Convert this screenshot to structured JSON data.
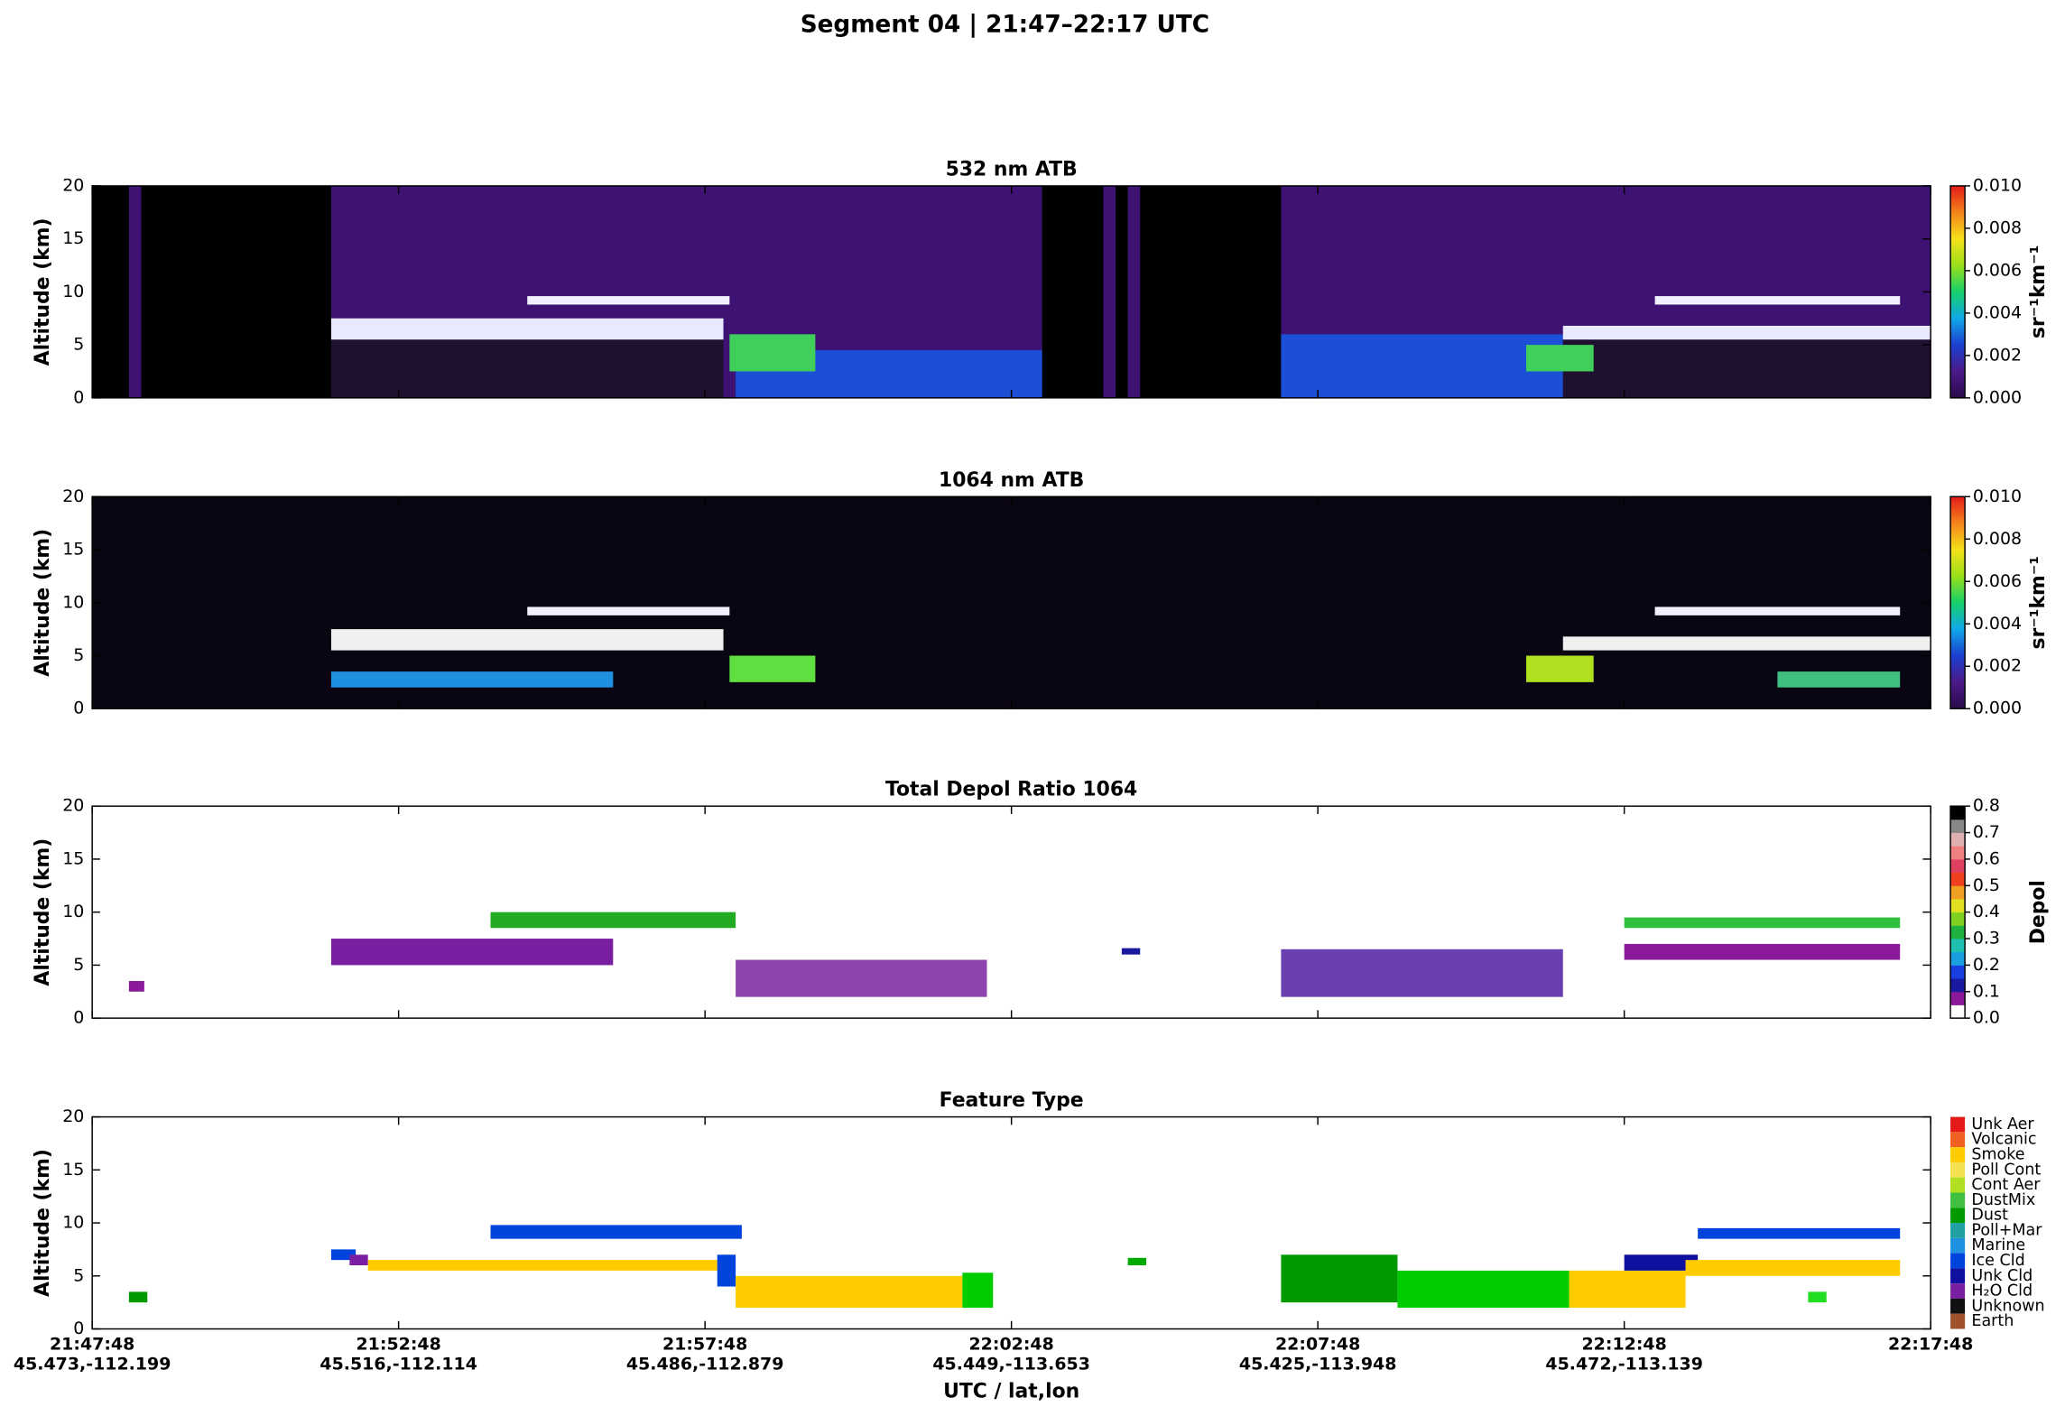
{
  "title": "Segment 04  |  21:47–22:17 UTC",
  "xlabel": "UTC / lat,lon",
  "chart_data": [
    {
      "type": "curtain",
      "title": "532 nm ATB",
      "ylabel": "Altitude (km)",
      "xlim": [
        0,
        30
      ],
      "ylim": [
        0,
        20
      ],
      "yticks": [
        0,
        5,
        10,
        15,
        20
      ],
      "colorbar": {
        "label": "sr⁻¹km⁻¹",
        "kind": "gradient",
        "lim": [
          0,
          0.01
        ],
        "ticks": [
          {
            "value": 0,
            "label": "0.000"
          },
          {
            "value": 0.002,
            "label": "0.002"
          },
          {
            "value": 0.004,
            "label": "0.004"
          },
          {
            "value": 0.006,
            "label": "0.006"
          },
          {
            "value": 0.008,
            "label": "0.008"
          },
          {
            "value": 0.01,
            "label": "0.010"
          }
        ],
        "colors": [
          "#2a0a4a",
          "#4b1a8a",
          "#1b3fd0",
          "#11a8e8",
          "#16d06a",
          "#9ae01a",
          "#f5e11a",
          "#f5841a",
          "#e41a1a"
        ]
      },
      "features": [
        {
          "x": [
            0,
            30
          ],
          "y": [
            0,
            20
          ],
          "color": "#3d1273"
        },
        {
          "x": [
            0,
            0.6
          ],
          "y": [
            0,
            20
          ],
          "color": "#000000"
        },
        {
          "x": [
            0.8,
            3.9
          ],
          "y": [
            0,
            20
          ],
          "color": "#000000"
        },
        {
          "x": [
            15.5,
            16.5
          ],
          "y": [
            0,
            20
          ],
          "color": "#000000"
        },
        {
          "x": [
            16.7,
            16.9
          ],
          "y": [
            0,
            20
          ],
          "color": "#000000"
        },
        {
          "x": [
            17.1,
            19.4
          ],
          "y": [
            0,
            20
          ],
          "color": "#000000"
        },
        {
          "x": [
            10.5,
            15.5
          ],
          "y": [
            0,
            4.5
          ],
          "color": "#1a4fd6"
        },
        {
          "x": [
            19.4,
            24
          ],
          "y": [
            0,
            6
          ],
          "color": "#1a4fd6"
        },
        {
          "x": [
            3.9,
            10.3
          ],
          "y": [
            0,
            5.5
          ],
          "color": "#201030"
        },
        {
          "x": [
            24,
            30
          ],
          "y": [
            0,
            5.5
          ],
          "color": "#201030"
        },
        {
          "x": [
            3.9,
            10.3
          ],
          "y": [
            5.5,
            7.5
          ],
          "color": "#e8e8ff"
        },
        {
          "x": [
            7.1,
            10.4
          ],
          "y": [
            8.8,
            9.6
          ],
          "color": "#f0f0ff"
        },
        {
          "x": [
            10.4,
            11.8
          ],
          "y": [
            2.5,
            6
          ],
          "color": "#3fcf5a"
        },
        {
          "x": [
            24,
            30
          ],
          "y": [
            5.5,
            6.8
          ],
          "color": "#e8e8ff"
        },
        {
          "x": [
            25.5,
            29.5
          ],
          "y": [
            8.8,
            9.6
          ],
          "color": "#f0f0ff"
        },
        {
          "x": [
            23.4,
            24.5
          ],
          "y": [
            2.5,
            5
          ],
          "color": "#3fcf5a"
        }
      ]
    },
    {
      "type": "curtain",
      "title": "1064 nm ATB",
      "ylabel": "Altitude (km)",
      "xlim": [
        0,
        30
      ],
      "ylim": [
        0,
        20
      ],
      "yticks": [
        0,
        5,
        10,
        15,
        20
      ],
      "colorbar": {
        "label": "sr⁻¹km⁻¹",
        "kind": "gradient",
        "lim": [
          0,
          0.01
        ],
        "ticks": [
          {
            "value": 0,
            "label": "0.000"
          },
          {
            "value": 0.002,
            "label": "0.002"
          },
          {
            "value": 0.004,
            "label": "0.004"
          },
          {
            "value": 0.006,
            "label": "0.006"
          },
          {
            "value": 0.008,
            "label": "0.008"
          },
          {
            "value": 0.01,
            "label": "0.010"
          }
        ],
        "colors": [
          "#2a0a4a",
          "#4b1a8a",
          "#1b3fd0",
          "#11a8e8",
          "#16d06a",
          "#9ae01a",
          "#f5e11a",
          "#f5841a",
          "#e41a1a"
        ]
      },
      "features": [
        {
          "x": [
            0,
            30
          ],
          "y": [
            0,
            20
          ],
          "color": "#0a0512"
        },
        {
          "x": [
            3.9,
            8.5
          ],
          "y": [
            2,
            3.5
          ],
          "color": "#1f8fe0"
        },
        {
          "x": [
            3.9,
            10.3
          ],
          "y": [
            5.5,
            7.5
          ],
          "color": "#f0f0f0"
        },
        {
          "x": [
            7.1,
            10.4
          ],
          "y": [
            8.8,
            9.6
          ],
          "color": "#f0f0ff"
        },
        {
          "x": [
            10.4,
            11.8
          ],
          "y": [
            2.5,
            5
          ],
          "color": "#60e040"
        },
        {
          "x": [
            23.4,
            24.5
          ],
          "y": [
            2.5,
            5
          ],
          "color": "#b0e020"
        },
        {
          "x": [
            24,
            30
          ],
          "y": [
            5.5,
            6.8
          ],
          "color": "#f0f0f0"
        },
        {
          "x": [
            25.5,
            29.5
          ],
          "y": [
            8.8,
            9.6
          ],
          "color": "#f0f0ff"
        },
        {
          "x": [
            27.5,
            29.5
          ],
          "y": [
            2,
            3.5
          ],
          "color": "#40c080"
        }
      ]
    },
    {
      "type": "curtain",
      "title": "Total Depol Ratio 1064",
      "ylabel": "Altitude (km)",
      "xlim": [
        0,
        30
      ],
      "ylim": [
        0,
        20
      ],
      "yticks": [
        0,
        5,
        10,
        15,
        20
      ],
      "colorbar": {
        "label": "Depol",
        "kind": "steps",
        "lim": [
          0,
          0.8
        ],
        "ticks": [
          {
            "value": 0,
            "label": "0.0"
          },
          {
            "value": 0.1,
            "label": "0.1"
          },
          {
            "value": 0.2,
            "label": "0.2"
          },
          {
            "value": 0.3,
            "label": "0.3"
          },
          {
            "value": 0.4,
            "label": "0.4"
          },
          {
            "value": 0.5,
            "label": "0.5"
          },
          {
            "value": 0.6,
            "label": "0.6"
          },
          {
            "value": 0.7,
            "label": "0.7"
          },
          {
            "value": 0.8,
            "label": "0.8"
          }
        ],
        "colors": [
          "#ffffff",
          "#8b1a9a",
          "#1a1aa0",
          "#1a3fe0",
          "#1a9fe0",
          "#20c0b0",
          "#20b040",
          "#80d020",
          "#e0e020",
          "#f0a020",
          "#f04020",
          "#e04060",
          "#f08080",
          "#e0b0b0",
          "#888888",
          "#000000"
        ]
      },
      "features": [
        {
          "x": [
            0.6,
            0.85
          ],
          "y": [
            2.5,
            3.5
          ],
          "color": "#8b1a9a"
        },
        {
          "x": [
            3.9,
            8.5
          ],
          "y": [
            5,
            7.5
          ],
          "color": "#7b1fa2"
        },
        {
          "x": [
            6.5,
            10.5
          ],
          "y": [
            8.5,
            10
          ],
          "color": "#22aa22"
        },
        {
          "x": [
            10.5,
            14.6
          ],
          "y": [
            2,
            5.5
          ],
          "color": "#8e44ad"
        },
        {
          "x": [
            16.8,
            17.1
          ],
          "y": [
            6,
            6.6
          ],
          "color": "#1a1aa0"
        },
        {
          "x": [
            19.4,
            24
          ],
          "y": [
            2,
            6.5
          ],
          "color": "#6a3fb0"
        },
        {
          "x": [
            25,
            29.5
          ],
          "y": [
            8.5,
            9.5
          ],
          "color": "#2fc040"
        },
        {
          "x": [
            25,
            29.5
          ],
          "y": [
            5.5,
            7
          ],
          "color": "#8b1a9a"
        }
      ]
    },
    {
      "type": "curtain",
      "title": "Feature Type",
      "ylabel": "Altitude (km)",
      "xlim": [
        0,
        30
      ],
      "ylim": [
        0,
        20
      ],
      "yticks": [
        0,
        5,
        10,
        15,
        20
      ],
      "xticks": [
        {
          "value": 0,
          "label": "21:47:48"
        },
        {
          "value": 5,
          "label": "21:52:48"
        },
        {
          "value": 10,
          "label": "21:57:48"
        },
        {
          "value": 15,
          "label": "22:02:48"
        },
        {
          "value": 20,
          "label": "22:07:48"
        },
        {
          "value": 25,
          "label": "22:12:48"
        },
        {
          "value": 30,
          "label": "22:17:48"
        }
      ],
      "xsublabels": [
        "45.473,-112.199",
        "45.516,-112.114",
        "45.486,-112.879",
        "45.449,-113.653",
        "45.425,-113.948",
        "45.472,-113.139",
        ""
      ],
      "colorbar": {
        "kind": "legend",
        "categories": [
          "Unk Aer",
          "Volcanic",
          "Smoke",
          "Poll Cont",
          "Cont Aer",
          "DustMix",
          "Dust",
          "Poll+Mar",
          "Marine",
          "Ice Cld",
          "Unk Cld",
          "H₂O Cld",
          "Unknown",
          "Earth"
        ],
        "colors": [
          "#e41a1a",
          "#f06020",
          "#ffcc00",
          "#f5e050",
          "#b0e020",
          "#40c040",
          "#009900",
          "#20a0a0",
          "#2090e0",
          "#0044dd",
          "#1010a0",
          "#7b1fa2",
          "#111111",
          "#a0522d"
        ]
      },
      "features": [
        {
          "x": [
            0.6,
            0.9
          ],
          "y": [
            2.5,
            3.5
          ],
          "color": "#009900"
        },
        {
          "x": [
            3.9,
            4.3
          ],
          "y": [
            6.5,
            7.5
          ],
          "color": "#0044dd"
        },
        {
          "x": [
            4.2,
            4.5
          ],
          "y": [
            6,
            7
          ],
          "color": "#7b1fa2"
        },
        {
          "x": [
            4.5,
            10.3
          ],
          "y": [
            5.5,
            6.5
          ],
          "color": "#ffcc00"
        },
        {
          "x": [
            6.5,
            10.6
          ],
          "y": [
            8.5,
            9.8
          ],
          "color": "#0044dd"
        },
        {
          "x": [
            10.2,
            10.5
          ],
          "y": [
            4,
            7
          ],
          "color": "#0044dd"
        },
        {
          "x": [
            10.5,
            14.2
          ],
          "y": [
            2,
            5
          ],
          "color": "#ffcc00"
        },
        {
          "x": [
            14.2,
            14.7
          ],
          "y": [
            2,
            5.3
          ],
          "color": "#00cc00"
        },
        {
          "x": [
            16.9,
            17.2
          ],
          "y": [
            6,
            6.7
          ],
          "color": "#00aa00"
        },
        {
          "x": [
            19.4,
            21.3
          ],
          "y": [
            2.5,
            7
          ],
          "color": "#009900"
        },
        {
          "x": [
            21.3,
            24.1
          ],
          "y": [
            2,
            5.5
          ],
          "color": "#00cc00"
        },
        {
          "x": [
            24.1,
            26
          ],
          "y": [
            2,
            5.5
          ],
          "color": "#ffcc00"
        },
        {
          "x": [
            25,
            26.2
          ],
          "y": [
            5.5,
            7
          ],
          "color": "#1010a0"
        },
        {
          "x": [
            26.2,
            29.5
          ],
          "y": [
            8.5,
            9.5
          ],
          "color": "#0044dd"
        },
        {
          "x": [
            26,
            29.5
          ],
          "y": [
            5,
            6.5
          ],
          "color": "#ffcc00"
        },
        {
          "x": [
            28,
            28.3
          ],
          "y": [
            2.5,
            3.5
          ],
          "color": "#22dd22"
        }
      ]
    }
  ]
}
